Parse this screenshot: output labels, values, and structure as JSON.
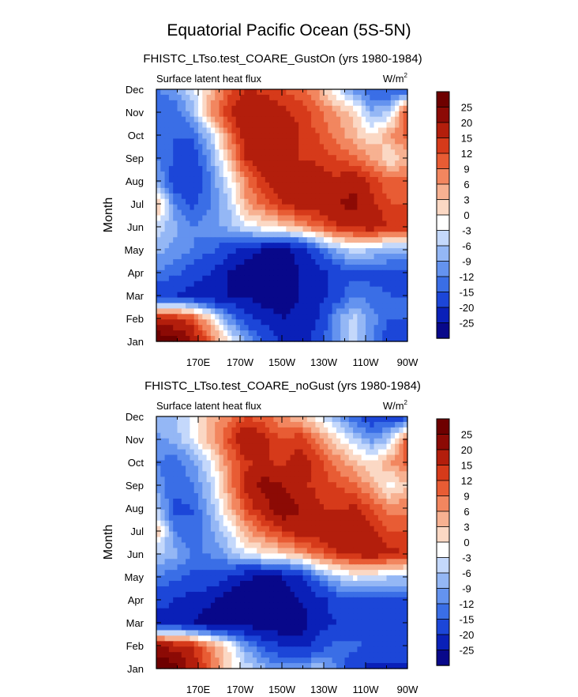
{
  "figure_title": "Equatorial Pacific Ocean (5S-5N)",
  "colors": {
    "levels_palette": [
      "#08088a",
      "#0a20b8",
      "#1c46d8",
      "#3a6ee6",
      "#6493ef",
      "#94b7f5",
      "#c4d8fb",
      "#ffffff",
      "#fbd8c4",
      "#f7b191",
      "#f2865f",
      "#e85c34",
      "#d63a1a",
      "#b31e0c",
      "#8c0a05",
      "#6e0000"
    ]
  },
  "chart_data": [
    {
      "type": "heatmap",
      "subtitle": "FHISTC_LTso.test_COARE_GustOn (yrs 1980-1984)",
      "left_label": "Surface latent heat flux",
      "units_base": "W/m",
      "units_exp": "2",
      "ylabel": "Month",
      "xlabel": "",
      "x_tick_labels": [
        "170E",
        "170W",
        "150W",
        "130W",
        "110W",
        "90W"
      ],
      "x_tick_lons": [
        170,
        190,
        210,
        230,
        250,
        270
      ],
      "xlim_lon": [
        150,
        270
      ],
      "y_tick_labels": [
        "Jan",
        "Feb",
        "Mar",
        "Apr",
        "May",
        "Jun",
        "Jul",
        "Aug",
        "Sep",
        "Oct",
        "Nov",
        "Dec"
      ],
      "ylim_month": [
        1,
        12
      ],
      "colorbar_labels": [
        "25",
        "20",
        "15",
        "12",
        "9",
        "6",
        "3",
        "0",
        "-3",
        "-6",
        "-9",
        "-12",
        "-15",
        "-20",
        "-25"
      ],
      "levels": [
        -25,
        -20,
        -15,
        -12,
        -9,
        -6,
        -3,
        0,
        3,
        6,
        9,
        12,
        15,
        20,
        25
      ],
      "value_range": [
        -30,
        30
      ],
      "grid": false,
      "values": [
        [
          30,
          28,
          20,
          10,
          0,
          -8,
          -15,
          -20,
          -22,
          -18,
          -10,
          -5,
          -12,
          -18,
          -18
        ],
        [
          18,
          15,
          12,
          2,
          -10,
          -18,
          -22,
          -25,
          -24,
          -20,
          -10,
          -5,
          -10,
          -15,
          -15
        ],
        [
          -20,
          -20,
          -22,
          -25,
          -25,
          -25,
          -28,
          -28,
          -25,
          -22,
          -18,
          -12,
          -14,
          -15,
          -15
        ],
        [
          -12,
          -14,
          -17,
          -20,
          -25,
          -28,
          -30,
          -28,
          -25,
          -22,
          -18,
          -16,
          -16,
          -16,
          -16
        ],
        [
          -8,
          -10,
          -12,
          -14,
          -18,
          -22,
          -25,
          -26,
          -24,
          -15,
          -8,
          -4,
          -6,
          -8,
          -8
        ],
        [
          -4,
          -8,
          -12,
          -10,
          -8,
          -3,
          0,
          2,
          5,
          10,
          14,
          16,
          18,
          15,
          15
        ],
        [
          5,
          -12,
          -16,
          -12,
          -6,
          5,
          10,
          15,
          18,
          18,
          20,
          22,
          16,
          12,
          12
        ],
        [
          -8,
          -18,
          -20,
          -12,
          -3,
          8,
          15,
          18,
          20,
          18,
          16,
          18,
          14,
          10,
          10
        ],
        [
          -12,
          -15,
          -18,
          -10,
          3,
          15,
          20,
          18,
          15,
          14,
          12,
          10,
          6,
          0,
          5
        ],
        [
          -15,
          -15,
          -14,
          -6,
          8,
          18,
          20,
          18,
          15,
          12,
          8,
          4,
          0,
          6,
          10
        ],
        [
          -15,
          -14,
          -8,
          6,
          15,
          20,
          18,
          16,
          14,
          10,
          6,
          2,
          -8,
          -6,
          14
        ],
        [
          -12,
          -10,
          -4,
          3,
          10,
          15,
          14,
          12,
          10,
          6,
          -3,
          -10,
          -15,
          -16,
          -16
        ]
      ]
    },
    {
      "type": "heatmap",
      "subtitle": "FHISTC_LTso.test_COARE_noGust (yrs 1980-1984)",
      "left_label": "Surface latent heat flux",
      "units_base": "W/m",
      "units_exp": "2",
      "ylabel": "Month",
      "xlabel": "",
      "x_tick_labels": [
        "170E",
        "170W",
        "150W",
        "130W",
        "110W",
        "90W"
      ],
      "x_tick_lons": [
        170,
        190,
        210,
        230,
        250,
        270
      ],
      "xlim_lon": [
        150,
        270
      ],
      "y_tick_labels": [
        "Jan",
        "Feb",
        "Mar",
        "Apr",
        "May",
        "Jun",
        "Jul",
        "Aug",
        "Sep",
        "Oct",
        "Nov",
        "Dec"
      ],
      "ylim_month": [
        1,
        12
      ],
      "colorbar_labels": [
        "25",
        "20",
        "15",
        "12",
        "9",
        "6",
        "3",
        "0",
        "-3",
        "-6",
        "-9",
        "-12",
        "-15",
        "-20",
        "-25"
      ],
      "levels": [
        -25,
        -20,
        -15,
        -12,
        -9,
        -6,
        -3,
        0,
        3,
        6,
        9,
        12,
        15,
        20,
        25
      ],
      "value_range": [
        -30,
        30
      ],
      "grid": false,
      "values": [
        [
          30,
          28,
          18,
          10,
          2,
          -4,
          -8,
          -10,
          -10,
          -6,
          -12,
          -18,
          -22,
          -22,
          -22
        ],
        [
          20,
          18,
          15,
          8,
          0,
          -10,
          -16,
          -20,
          -22,
          -18,
          -14,
          -14,
          -16,
          -16,
          -16
        ],
        [
          -22,
          -22,
          -25,
          -28,
          -28,
          -28,
          -30,
          -30,
          -28,
          -22,
          -20,
          -20,
          -18,
          -16,
          -16
        ],
        [
          -18,
          -20,
          -22,
          -24,
          -28,
          -30,
          -30,
          -28,
          -25,
          -22,
          -18,
          -16,
          -16,
          -16,
          -16
        ],
        [
          -12,
          -14,
          -16,
          -16,
          -20,
          -24,
          -26,
          -25,
          -22,
          -12,
          -6,
          -2,
          -3,
          -6,
          -6
        ],
        [
          -6,
          -8,
          -12,
          -12,
          -8,
          -3,
          0,
          2,
          5,
          10,
          14,
          16,
          18,
          16,
          15
        ],
        [
          4,
          -12,
          -15,
          -10,
          -4,
          5,
          10,
          14,
          18,
          18,
          20,
          20,
          16,
          12,
          12
        ],
        [
          -6,
          -16,
          -15,
          -8,
          3,
          12,
          18,
          25,
          20,
          16,
          14,
          16,
          12,
          8,
          8
        ],
        [
          -10,
          -14,
          -12,
          -6,
          6,
          16,
          22,
          20,
          16,
          14,
          12,
          10,
          5,
          -2,
          3
        ],
        [
          -12,
          -14,
          -10,
          -3,
          8,
          14,
          16,
          14,
          18,
          14,
          8,
          4,
          0,
          6,
          10
        ],
        [
          -10,
          -8,
          -3,
          5,
          12,
          20,
          16,
          12,
          14,
          8,
          2,
          -5,
          -10,
          -6,
          12
        ],
        [
          -8,
          -6,
          -2,
          4,
          8,
          12,
          10,
          6,
          4,
          -2,
          -8,
          -14,
          -18,
          -18,
          -18
        ]
      ]
    }
  ]
}
